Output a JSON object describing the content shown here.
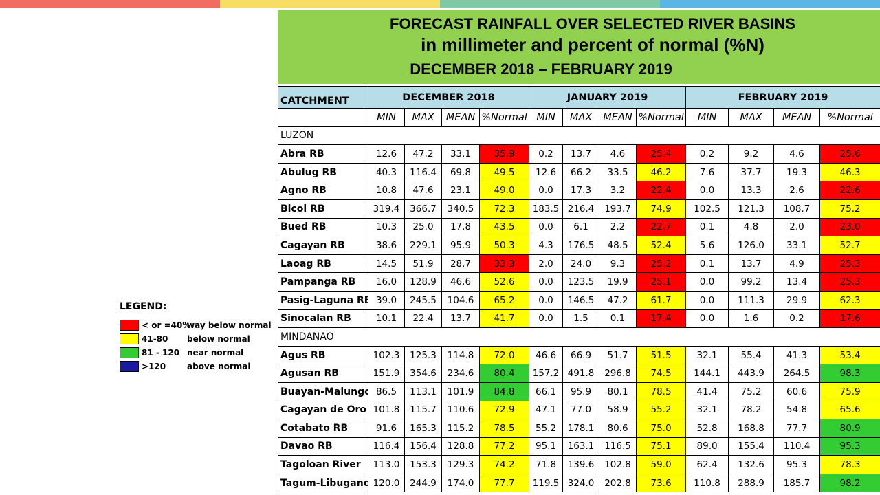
{
  "colors": {
    "top_bar": [
      "#f26c64",
      "#f7dd63",
      "#7fc9a6",
      "#5bb6e6"
    ],
    "title_bg": "#92d050",
    "header_bg": "#b7dde8",
    "way_below": "#ff0000",
    "below": "#ffff00",
    "near": "#33cc33",
    "above": "#1a1aa0"
  },
  "title": {
    "line1": "FORECAST RAINFALL OVER SELECTED RIVER BASINS",
    "line2": "in millimeter  and percent of normal (%N)",
    "line3": "DECEMBER 2018 – FEBRUARY 2019"
  },
  "table": {
    "catchment_header": "CATCHMENT",
    "months": [
      "DECEMBER 2018",
      "JANUARY 2019",
      "FEBRUARY 2019"
    ],
    "sub_headers": [
      "MIN",
      "MAX",
      "MEAN",
      "%Normal"
    ],
    "sections": [
      {
        "name": "LUZON",
        "rows": [
          {
            "name": "Abra RB",
            "values": [
              "12.6",
              "47.2",
              "33.1",
              "35.9",
              "0.2",
              "13.7",
              "4.6",
              "25.4",
              "0.2",
              "9.2",
              "4.6",
              "25.6"
            ],
            "cat": [
              "red",
              "red",
              "red"
            ]
          },
          {
            "name": "Abulug RB",
            "values": [
              "40.3",
              "116.4",
              "69.8",
              "49.5",
              "12.6",
              "66.2",
              "33.5",
              "46.2",
              "7.6",
              "37.7",
              "19.3",
              "46.3"
            ],
            "cat": [
              "yellow",
              "yellow",
              "yellow"
            ]
          },
          {
            "name": "Agno RB",
            "values": [
              "10.8",
              "47.6",
              "23.1",
              "49.0",
              "0.0",
              "17.3",
              "3.2",
              "22.4",
              "0.0",
              "13.3",
              "2.6",
              "22.6"
            ],
            "cat": [
              "yellow",
              "red",
              "red"
            ]
          },
          {
            "name": "Bicol RB",
            "values": [
              "319.4",
              "366.7",
              "340.5",
              "72.3",
              "183.5",
              "216.4",
              "193.7",
              "74.9",
              "102.5",
              "121.3",
              "108.7",
              "75.2"
            ],
            "cat": [
              "yellow",
              "yellow",
              "yellow"
            ]
          },
          {
            "name": "Bued RB",
            "values": [
              "10.3",
              "25.0",
              "17.8",
              "43.5",
              "0.0",
              "6.1",
              "2.2",
              "22.7",
              "0.1",
              "4.8",
              "2.0",
              "23.0"
            ],
            "cat": [
              "yellow",
              "red",
              "red"
            ]
          },
          {
            "name": "Cagayan RB",
            "values": [
              "38.6",
              "229.1",
              "95.9",
              "50.3",
              "4.3",
              "176.5",
              "48.5",
              "52.4",
              "5.6",
              "126.0",
              "33.1",
              "52.7"
            ],
            "cat": [
              "yellow",
              "yellow",
              "yellow"
            ]
          },
          {
            "name": "Laoag RB",
            "values": [
              "14.5",
              "51.9",
              "28.7",
              "33.3",
              "2.0",
              "24.0",
              "9.3",
              "25.2",
              "0.1",
              "13.7",
              "4.9",
              "25.3"
            ],
            "cat": [
              "red",
              "red",
              "red"
            ]
          },
          {
            "name": "Pampanga RB",
            "values": [
              "16.0",
              "128.9",
              "46.6",
              "52.6",
              "0.0",
              "123.5",
              "19.9",
              "25.1",
              "0.0",
              "99.2",
              "13.4",
              "25.3"
            ],
            "cat": [
              "yellow",
              "red",
              "red"
            ]
          },
          {
            "name": "Pasig-Laguna RB",
            "values": [
              "39.0",
              "245.5",
              "104.6",
              "65.2",
              "0.0",
              "146.5",
              "47.2",
              "61.7",
              "0.0",
              "111.3",
              "29.9",
              "62.3"
            ],
            "cat": [
              "yellow",
              "yellow",
              "yellow"
            ]
          },
          {
            "name": "Sinocalan RB",
            "values": [
              "10.1",
              "22.4",
              "13.7",
              "41.7",
              "0.0",
              "1.5",
              "0.1",
              "17.4",
              "0.0",
              "1.6",
              "0.2",
              "17.6"
            ],
            "cat": [
              "yellow",
              "red",
              "red"
            ]
          }
        ]
      },
      {
        "name": "MINDANAO",
        "rows": [
          {
            "name": "Agus RB",
            "values": [
              "102.3",
              "125.3",
              "114.8",
              "72.0",
              "46.6",
              "66.9",
              "51.7",
              "51.5",
              "32.1",
              "55.4",
              "41.3",
              "53.4"
            ],
            "cat": [
              "yellow",
              "yellow",
              "yellow"
            ]
          },
          {
            "name": "Agusan RB",
            "values": [
              "151.9",
              "354.6",
              "234.6",
              "80.4",
              "157.2",
              "491.8",
              "296.8",
              "74.5",
              "144.1",
              "443.9",
              "264.5",
              "98.3"
            ],
            "cat": [
              "green",
              "yellow",
              "green"
            ]
          },
          {
            "name": "Buayan-Malungon",
            "values": [
              "86.5",
              "113.1",
              "101.9",
              "84.8",
              "66.1",
              "95.9",
              "80.1",
              "78.5",
              "41.4",
              "75.2",
              "60.6",
              "75.9"
            ],
            "cat": [
              "green",
              "yellow",
              "yellow"
            ]
          },
          {
            "name": "Cagayan de Oro",
            "values": [
              "101.8",
              "115.7",
              "110.6",
              "72.9",
              "47.1",
              "77.0",
              "58.9",
              "55.2",
              "32.1",
              "78.2",
              "54.8",
              "65.6"
            ],
            "cat": [
              "yellow",
              "yellow",
              "yellow"
            ]
          },
          {
            "name": "Cotabato RB",
            "values": [
              "91.6",
              "165.3",
              "115.2",
              "78.5",
              "55.2",
              "178.1",
              "80.6",
              "75.0",
              "52.8",
              "168.8",
              "77.7",
              "80.9"
            ],
            "cat": [
              "yellow",
              "yellow",
              "green"
            ]
          },
          {
            "name": "Davao RB",
            "values": [
              "116.4",
              "156.4",
              "128.8",
              "77.2",
              "95.1",
              "163.1",
              "116.5",
              "75.1",
              "89.0",
              "155.4",
              "110.4",
              "95.3"
            ],
            "cat": [
              "yellow",
              "yellow",
              "green"
            ]
          },
          {
            "name": "Tagoloan River",
            "values": [
              "113.0",
              "153.3",
              "129.3",
              "74.2",
              "71.8",
              "139.6",
              "102.8",
              "59.0",
              "62.4",
              "132.6",
              "95.3",
              "78.3"
            ],
            "cat": [
              "yellow",
              "yellow",
              "yellow"
            ]
          },
          {
            "name": "Tagum-Libuganon",
            "values": [
              "120.0",
              "244.9",
              "174.0",
              "77.7",
              "119.5",
              "324.0",
              "202.8",
              "73.6",
              "110.8",
              "288.9",
              "185.7",
              "98.2"
            ],
            "cat": [
              "yellow",
              "yellow",
              "green"
            ]
          }
        ]
      }
    ]
  },
  "legend": {
    "title": "LEGEND:",
    "items": [
      {
        "range": "< or =40%",
        "desc": "way below normal",
        "color": "#ff0000"
      },
      {
        "range": "41-80",
        "desc": "below normal",
        "color": "#ffff00"
      },
      {
        "range": "81 - 120",
        "desc": "near normal",
        "color": "#33cc33"
      },
      {
        "range": ">120",
        "desc": "above normal",
        "color": "#1a1aa0"
      }
    ]
  }
}
